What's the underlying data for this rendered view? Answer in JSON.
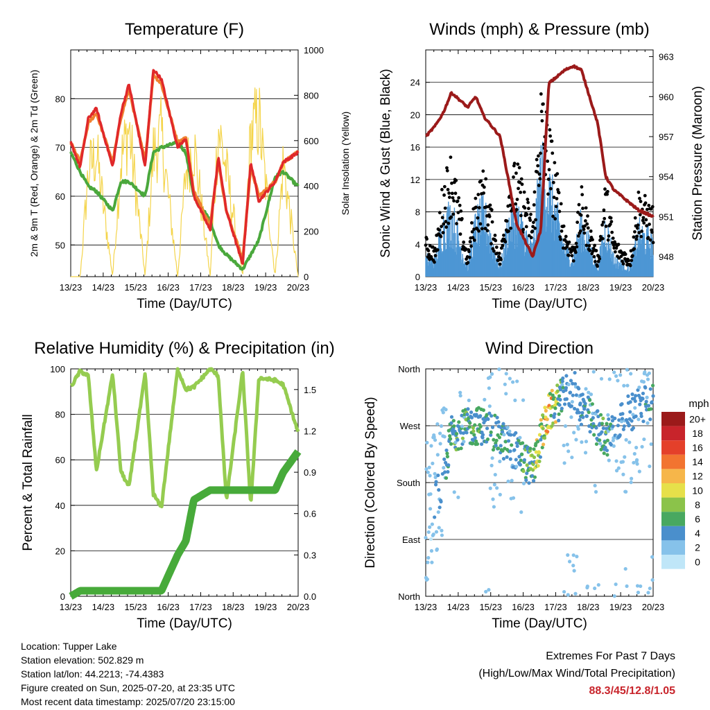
{
  "x_ticks": [
    "13/23",
    "14/23",
    "15/23",
    "16/23",
    "17/23",
    "18/23",
    "19/23",
    "20/23"
  ],
  "colors": {
    "temp2m": "#e0282a",
    "temp9m": "#f08030",
    "dewpoint": "#4aa83c",
    "solar": "#f4d44a",
    "wind": "#4d96d4",
    "gust": "#000000",
    "pressure": "#9b1a1a",
    "rh": "#95cc50",
    "precip": "#47aa3a"
  },
  "charts": {
    "temperature": {
      "title": "Temperature (F)",
      "xlabel": "Time (Day/UTC)",
      "ylabel_left": "2m & 9m T (Red, Orange) & 2m Td (Green)",
      "ylabel_right": "Solar Insolation (Yellow)",
      "left_ticks": [
        "50",
        "60",
        "70",
        "80"
      ],
      "right_ticks": [
        "0",
        "200",
        "400",
        "600",
        "800",
        "1000"
      ]
    },
    "winds": {
      "title": "Winds (mph) & Pressure (mb)",
      "xlabel": "Time (Day/UTC)",
      "ylabel_left": "Sonic Wind & Gust (Blue, Black)",
      "ylabel_right": "Station Pressure (Maroon)",
      "left_ticks": [
        "0",
        "4",
        "8",
        "12",
        "16",
        "20",
        "24"
      ],
      "right_ticks": [
        "948",
        "951",
        "954",
        "957",
        "960",
        "963"
      ]
    },
    "humidity": {
      "title": "Relative Humidity (%) & Precipitation (in)",
      "xlabel": "Time (Day/UTC)",
      "ylabel_left": "Percent & Total Rainfall",
      "left_ticks": [
        "0",
        "20",
        "40",
        "60",
        "80",
        "100"
      ],
      "right_ticks": [
        "0.0",
        "0.3",
        "0.6",
        "0.9",
        "1.2",
        "1.5"
      ]
    },
    "direction": {
      "title": "Wind Direction",
      "xlabel": "Time (Day/UTC)",
      "ylabel_left": "Direction (Colored By Speed)",
      "left_ticks": [
        "North",
        "East",
        "South",
        "West",
        "North"
      ],
      "legend_title": "mph",
      "legend_labels": [
        "0",
        "2",
        "4",
        "6",
        "8",
        "10",
        "12",
        "14",
        "16",
        "18",
        "20+"
      ],
      "legend_colors": [
        "#bfe6f8",
        "#86c2ea",
        "#4a8fcc",
        "#48a860",
        "#8bc34a",
        "#e6e04a",
        "#f6b64a",
        "#f27430",
        "#e4402a",
        "#c8242b",
        "#9b1a1a"
      ]
    }
  },
  "chart_data": [
    {
      "type": "line",
      "title": "Temperature (F)",
      "xlabel": "Time (Day/UTC)",
      "ylim": [
        43.5,
        90
      ],
      "y2lim": [
        0,
        1000
      ],
      "x": [
        "13/23",
        "14/06",
        "14/12",
        "14/18",
        "15/06",
        "15/12",
        "15/18",
        "16/06",
        "16/12",
        "16/18",
        "17/06",
        "17/12",
        "17/18",
        "18/06",
        "18/12",
        "18/18",
        "19/06",
        "19/12",
        "19/18",
        "20/06",
        "20/12",
        "20/23"
      ],
      "series": [
        {
          "name": "2m T",
          "values": [
            71,
            66,
            76,
            78,
            66,
            77,
            83,
            66,
            86,
            84,
            70,
            72,
            60,
            53,
            68,
            57,
            46,
            67,
            59,
            63,
            67,
            69
          ]
        },
        {
          "name": "9m T",
          "values": [
            71,
            67,
            75,
            77,
            67,
            76,
            82,
            67,
            85,
            83,
            71,
            72,
            61,
            54,
            67,
            57,
            47,
            66,
            60,
            63,
            67,
            69
          ]
        },
        {
          "name": "2m Td",
          "values": [
            69,
            65,
            62,
            61,
            57,
            63,
            63,
            60,
            69,
            70,
            71,
            69,
            60,
            55,
            50,
            48,
            45,
            48,
            51,
            64,
            65,
            62
          ]
        },
        {
          "name": "Solar",
          "values": [
            0,
            0,
            600,
            700,
            0,
            650,
            850,
            0,
            700,
            800,
            0,
            600,
            750,
            0,
            850,
            600,
            0,
            800,
            900,
            0,
            650,
            0
          ]
        }
      ]
    },
    {
      "type": "line",
      "title": "Winds (mph) & Pressure (mb)",
      "xlabel": "Time (Day/UTC)",
      "ylim": [
        0,
        28
      ],
      "y2lim": [
        946.5,
        963.5
      ],
      "x": [
        "13/23",
        "14/06",
        "14/12",
        "14/18",
        "15/06",
        "15/12",
        "15/18",
        "16/06",
        "16/12",
        "16/18",
        "17/06",
        "17/12",
        "17/18",
        "18/06",
        "18/12",
        "18/18",
        "19/06",
        "19/12",
        "19/18",
        "20/06",
        "20/12",
        "20/23"
      ],
      "series": [
        {
          "name": "Sonic Wind",
          "values": [
            2,
            2,
            6,
            7,
            1,
            6,
            7,
            1,
            6,
            7,
            3,
            12,
            10,
            3,
            2,
            6,
            1,
            6,
            2,
            1,
            5,
            4
          ]
        },
        {
          "name": "Gust",
          "values": [
            4,
            3,
            10,
            13,
            2,
            9,
            11,
            2,
            10,
            12,
            6,
            20,
            16,
            5,
            3,
            9,
            2,
            10,
            4,
            2,
            9,
            7
          ]
        },
        {
          "name": "Station Pressure",
          "values": [
            957.0,
            957.8,
            958.8,
            960.3,
            959.2,
            960.0,
            958.5,
            957.0,
            953.8,
            950.5,
            948.0,
            950.0,
            961.0,
            962.0,
            962.3,
            962.0,
            958.0,
            954.0,
            953.0,
            952.0,
            951.5,
            951.0
          ]
        }
      ]
    },
    {
      "type": "line",
      "title": "Relative Humidity (%) & Precipitation (in)",
      "xlabel": "Time (Day/UTC)",
      "ylim": [
        0,
        100
      ],
      "y2lim": [
        0,
        1.65
      ],
      "x": [
        "13/23",
        "14/06",
        "14/12",
        "14/18",
        "15/06",
        "15/12",
        "15/18",
        "16/06",
        "16/12",
        "16/18",
        "17/06",
        "17/12",
        "17/18",
        "18/06",
        "18/12",
        "18/18",
        "19/06",
        "19/12",
        "19/18",
        "20/06",
        "20/12",
        "20/23"
      ],
      "series": [
        {
          "name": "Relative Humidity",
          "values": [
            92,
            99,
            97,
            55,
            98,
            55,
            48,
            98,
            45,
            39,
            100,
            91,
            92,
            100,
            97,
            42,
            99,
            40,
            96,
            95,
            93,
            72
          ]
        },
        {
          "name": "Total Rainfall",
          "values": [
            0,
            0.04,
            0.04,
            0.04,
            0.04,
            0.04,
            0.04,
            0.04,
            0.04,
            0.04,
            0.3,
            0.4,
            0.7,
            0.77,
            0.77,
            0.77,
            0.77,
            0.77,
            0.77,
            0.77,
            0.9,
            1.05
          ]
        }
      ]
    },
    {
      "type": "scatter",
      "title": "Wind Direction",
      "xlabel": "Time (Day/UTC)",
      "y_categories": [
        "North",
        "East",
        "South",
        "West",
        "North"
      ],
      "ylim": [
        0,
        360
      ],
      "x": [
        "13/23",
        "14/12",
        "14/18",
        "15/12",
        "15/18",
        "16/12",
        "16/18",
        "17/06",
        "17/12",
        "17/18",
        "18/06",
        "18/12",
        "18/18",
        "19/12",
        "19/18",
        "20/12",
        "20/23"
      ],
      "series": [
        {
          "name": "Direction",
          "values": [
            130,
            180,
            260,
            270,
            270,
            240,
            230,
            200,
            250,
            290,
            320,
            330,
            300,
            250,
            270,
            300,
            310
          ]
        },
        {
          "name": "Speed",
          "values": [
            2,
            3,
            6,
            6,
            5,
            5,
            4,
            8,
            10,
            12,
            4,
            3,
            4,
            6,
            4,
            3,
            5
          ]
        }
      ]
    }
  ],
  "meta": {
    "location": "Location: Tupper Lake",
    "elevation": "Station elevation: 502.829 m",
    "latlon": "Station lat/lon: 44.2213; -74.4383",
    "created": "Figure created on Sun, 2025-07-20, at 23:35 UTC",
    "recent": "Most recent data timestamp: 2025/07/20 23:15:00"
  },
  "extremes": {
    "line1": "Extremes For Past 7 Days",
    "line2": "(High/Low/Max Wind/Total Precipitation)",
    "value": "88.3/45/12.8/1.05"
  }
}
